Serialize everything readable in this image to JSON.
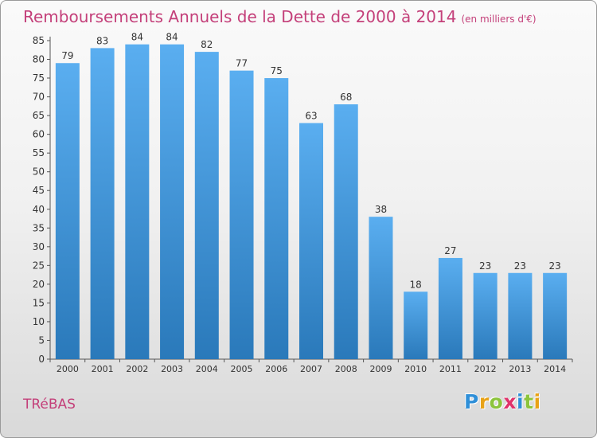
{
  "chart_data": {
    "type": "bar",
    "title": "Remboursements Annuels de la Dette de 2000 à 2014",
    "unit_note": "(en milliers d'€)",
    "categories": [
      "2000",
      "2001",
      "2002",
      "2003",
      "2004",
      "2005",
      "2006",
      "2007",
      "2008",
      "2009",
      "2010",
      "2011",
      "2012",
      "2013",
      "2014"
    ],
    "values": [
      79,
      83,
      84,
      84,
      82,
      77,
      75,
      63,
      68,
      38,
      18,
      27,
      23,
      23,
      23
    ],
    "ylim": [
      0,
      85
    ],
    "yticks": [
      0,
      5,
      10,
      15,
      20,
      25,
      30,
      35,
      40,
      45,
      50,
      55,
      60,
      65,
      70,
      75,
      80,
      85
    ],
    "grid": false,
    "bar_color_top": "#5aaef0",
    "bar_color_bottom": "#2a79ba"
  },
  "footer": {
    "commune": "TRéBAS",
    "logo_letters": [
      "P",
      "r",
      "o",
      "x",
      "i",
      "t",
      "i"
    ],
    "logo_colors": [
      "#2f8fd8",
      "#e8a216",
      "#8cc43c",
      "#e0336b",
      "#2f8fd8",
      "#8cc43c",
      "#e8a216"
    ]
  },
  "colors": {
    "title": "#c4407a",
    "axis": "#555555"
  }
}
